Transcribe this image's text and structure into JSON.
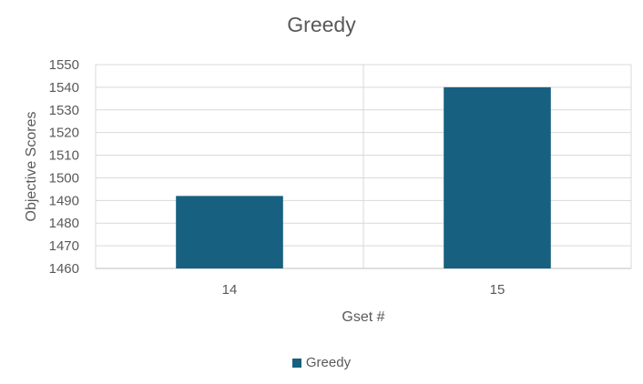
{
  "chart_data": {
    "type": "bar",
    "title": "Greedy",
    "xlabel": "Gset #",
    "ylabel": "Objective Scores",
    "categories": [
      "14",
      "15"
    ],
    "series": [
      {
        "name": "Greedy",
        "values": [
          1492,
          1540
        ],
        "color": "#17607f"
      }
    ],
    "ylim": [
      1460,
      1550
    ],
    "yticks": [
      1460,
      1470,
      1480,
      1490,
      1500,
      1510,
      1520,
      1530,
      1540,
      1550
    ],
    "grid": true,
    "legend_position": "bottom"
  }
}
